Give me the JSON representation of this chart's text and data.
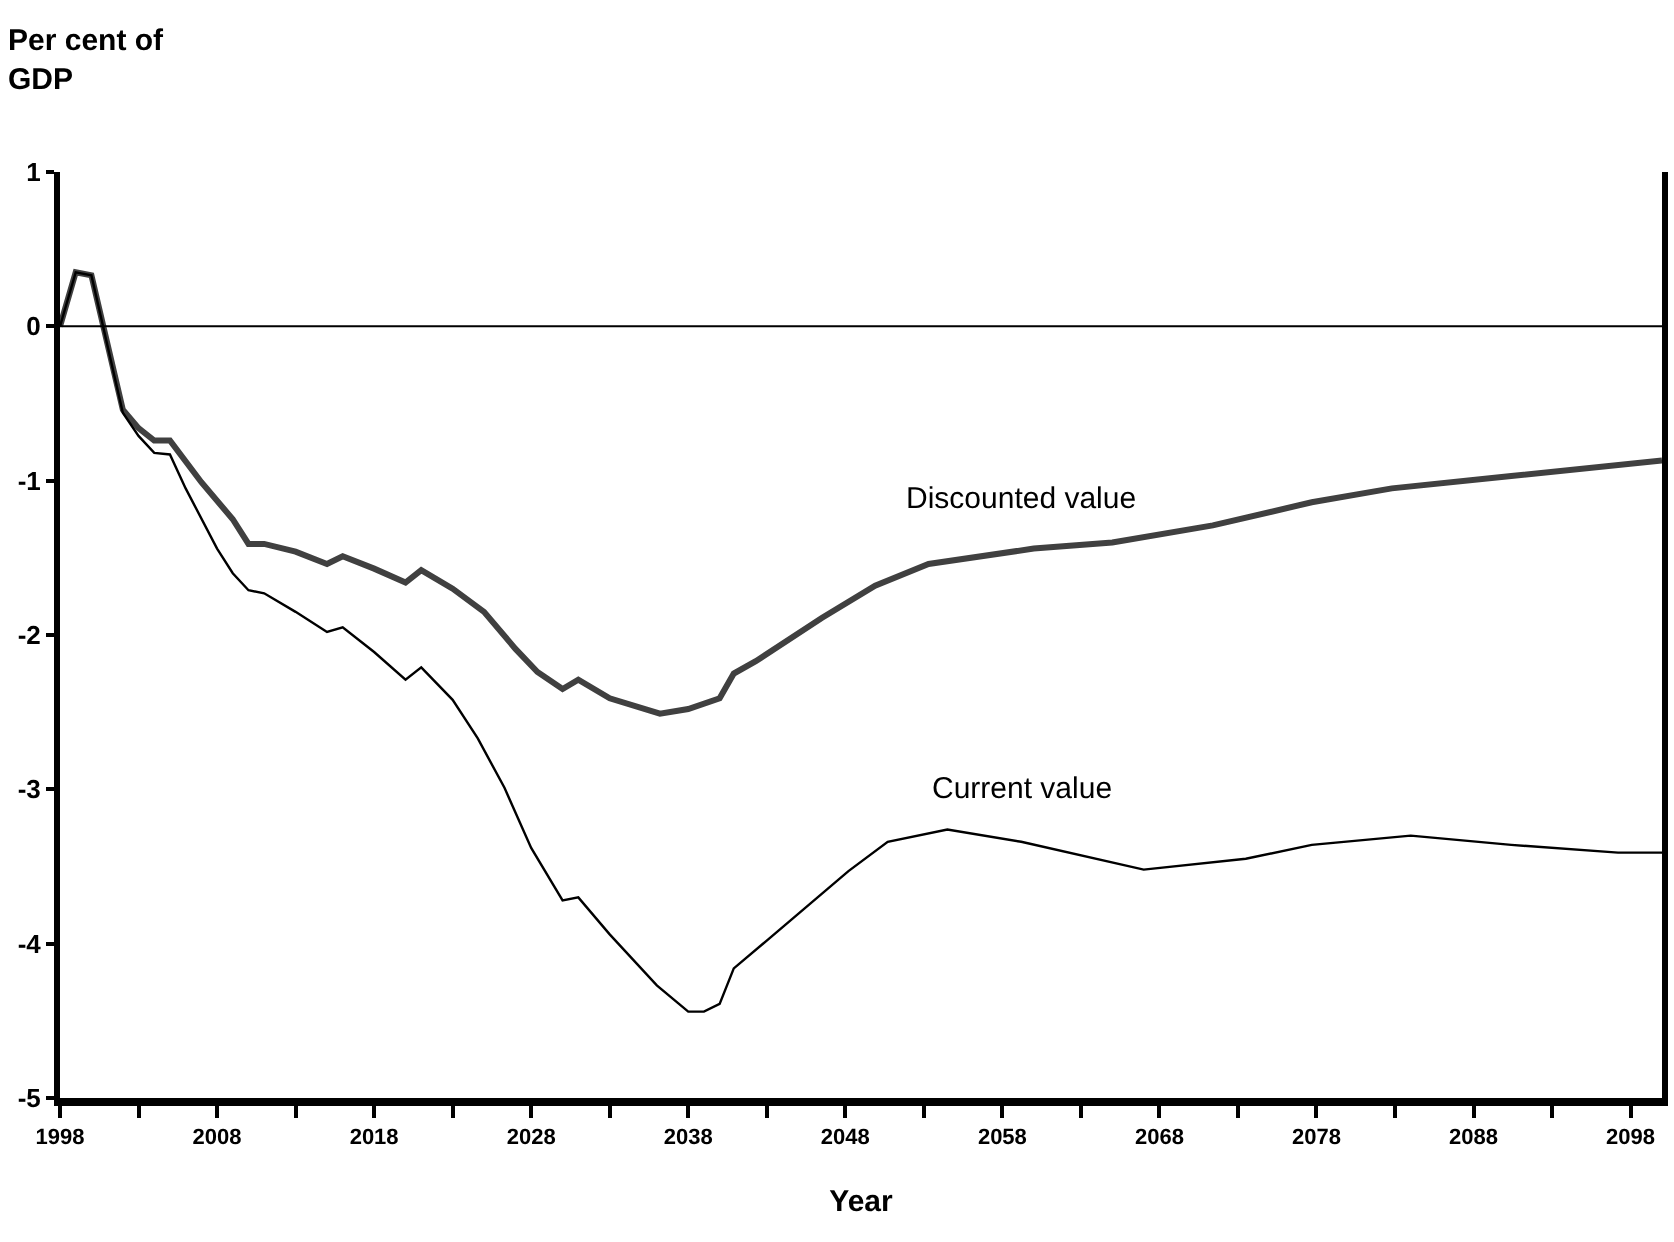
{
  "chart_data": {
    "type": "line",
    "ylabel": "Per cent of GDP",
    "xlabel": "Year",
    "xlim": [
      1998,
      2100
    ],
    "xticks": [
      1998,
      {
        "value": 2003,
        "label": null
      },
      2008,
      {
        "value": 2013,
        "label": null
      },
      2018,
      {
        "value": 2023,
        "label": null
      },
      2028,
      {
        "value": 2033,
        "label": null
      },
      2038,
      {
        "value": 2043,
        "label": null
      },
      2048,
      {
        "value": 2053,
        "label": null
      },
      2058,
      {
        "value": 2063,
        "label": null
      },
      2068,
      {
        "value": 2073,
        "label": null
      },
      2078,
      {
        "value": 2083,
        "label": null
      },
      2088,
      {
        "value": 2093,
        "label": null
      },
      2098
    ],
    "ylim": [
      -5,
      1
    ],
    "yticks": [
      -5,
      -4,
      -3,
      -2,
      -1,
      0,
      1
    ],
    "legend": false,
    "marker": "none",
    "line_style": "solid",
    "ref_lines": [
      {
        "axis": "y",
        "value": 0,
        "label": null,
        "color": "#000000"
      }
    ],
    "series": [
      {
        "name": "Discounted value",
        "color": "#404040",
        "x": [
          1998,
          1999,
          2000,
          2002,
          2003,
          2004,
          2005,
          2007,
          2009,
          2010,
          2011,
          2013,
          2015,
          2016,
          2018,
          2020,
          2021,
          2023,
          2025,
          2027,
          2028.4,
          2030,
          2031,
          2033,
          2036.2,
          2038,
          2040,
          2040.9,
          2042.3,
          2046.5,
          2049.9,
          2053.3,
          2060,
          2065,
          2071.4,
          2077.7,
          2082.8,
          2090.4,
          2100
        ],
        "values": [
          0.0,
          0.35,
          0.33,
          -0.54,
          -0.66,
          -0.74,
          -0.74,
          -1.01,
          -1.25,
          -1.41,
          -1.41,
          -1.46,
          -1.54,
          -1.49,
          -1.57,
          -1.66,
          -1.58,
          -1.7,
          -1.85,
          -2.09,
          -2.24,
          -2.35,
          -2.29,
          -2.41,
          -2.51,
          -2.48,
          -2.41,
          -2.25,
          -2.17,
          -1.89,
          -1.68,
          -1.54,
          -1.44,
          -1.4,
          -1.29,
          -1.14,
          -1.05,
          -0.97,
          -0.87
        ]
      },
      {
        "name": "Current value",
        "color": "#000000",
        "x": [
          1998,
          1999,
          2000,
          2002,
          2003,
          2004,
          2005,
          2006,
          2008,
          2009,
          2010,
          2011,
          2013,
          2015,
          2016,
          2018,
          2020,
          2021,
          2023,
          2024.6,
          2026.3,
          2028,
          2030,
          2031,
          2033,
          2036,
          2038,
          2039,
          2040,
          2040.9,
          2043,
          2048.2,
          2050.7,
          2054.5,
          2059.2,
          2067,
          2073.5,
          2077.7,
          2084,
          2090.4,
          2097.2,
          2100
        ],
        "values": [
          0.0,
          0.35,
          0.33,
          -0.56,
          -0.71,
          -0.82,
          -0.83,
          -1.05,
          -1.44,
          -1.6,
          -1.71,
          -1.73,
          -1.85,
          -1.98,
          -1.95,
          -2.11,
          -2.29,
          -2.21,
          -2.42,
          -2.67,
          -2.99,
          -3.38,
          -3.72,
          -3.7,
          -3.94,
          -4.27,
          -4.44,
          -4.44,
          -4.39,
          -4.16,
          -3.98,
          -3.53,
          -3.34,
          -3.26,
          -3.34,
          -3.52,
          -3.45,
          -3.36,
          -3.3,
          -3.36,
          -3.41,
          -3.41
        ]
      }
    ]
  }
}
